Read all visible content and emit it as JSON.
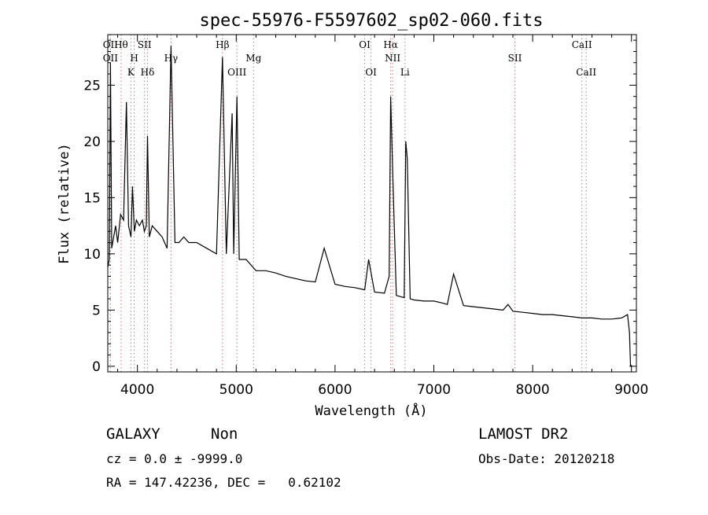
{
  "chart_data": {
    "type": "line",
    "title": "spec-55976-F5597602_sp02-060.fits",
    "xlabel": "Wavelength (Å)",
    "ylabel": "Flux (relative)",
    "xlim": [
      3700,
      9050
    ],
    "ylim": [
      -0.5,
      29.5
    ],
    "x_ticks": [
      4000,
      5000,
      6000,
      7000,
      8000,
      9000
    ],
    "y_ticks": [
      0,
      5,
      10,
      15,
      20,
      25
    ],
    "grid": false,
    "series": [
      {
        "x": [
          3700,
          3715,
          3727,
          3740,
          3760,
          3780,
          3800,
          3830,
          3860,
          3889,
          3910,
          3935,
          3950,
          3969,
          3990,
          4020,
          4050,
          4070,
          4090,
          4102,
          4120,
          4150,
          4200,
          4250,
          4300,
          4340,
          4380,
          4420,
          4470,
          4520,
          4600,
          4700,
          4800,
          4861,
          4900,
          4959,
          4975,
          5007,
          5030,
          5100,
          5200,
          5300,
          5400,
          5500,
          5600,
          5700,
          5800,
          5890,
          6000,
          6100,
          6200,
          6300,
          6340,
          6400,
          6500,
          6548,
          6563,
          6584,
          6620,
          6660,
          6700,
          6716,
          6731,
          6760,
          6800,
          6900,
          7000,
          7100,
          7136,
          7200,
          7300,
          7400,
          7500,
          7600,
          7700,
          7751,
          7800,
          7900,
          8000,
          8100,
          8200,
          8300,
          8400,
          8500,
          8600,
          8700,
          8800,
          8900,
          8960,
          8980,
          8990
        ],
        "y": [
          8.8,
          9.5,
          27.0,
          10.5,
          11.5,
          12.5,
          11.0,
          13.5,
          13.0,
          23.5,
          12.5,
          11.5,
          16.0,
          12.0,
          13.0,
          12.5,
          13.0,
          12.0,
          12.5,
          20.5,
          11.5,
          12.5,
          12.0,
          11.5,
          10.5,
          28.5,
          11.0,
          11.0,
          11.5,
          11.0,
          11.0,
          10.5,
          10.0,
          27.5,
          10.0,
          22.5,
          10.0,
          24.0,
          9.5,
          9.5,
          8.5,
          8.5,
          8.3,
          8.0,
          7.8,
          7.6,
          7.5,
          10.5,
          7.3,
          7.1,
          7.0,
          6.8,
          9.5,
          6.6,
          6.5,
          8.0,
          24.0,
          17.0,
          6.3,
          6.2,
          6.1,
          20.0,
          18.5,
          6.0,
          5.9,
          5.8,
          5.8,
          5.6,
          5.5,
          8.2,
          5.4,
          5.3,
          5.2,
          5.1,
          5.0,
          5.5,
          4.9,
          4.8,
          4.7,
          4.6,
          4.6,
          4.5,
          4.4,
          4.3,
          4.3,
          4.2,
          4.2,
          4.3,
          4.6,
          3.0,
          0.0
        ]
      }
    ],
    "line_markers": [
      {
        "wavelength": 3727,
        "label": "OII",
        "row": "top",
        "color": "#d88080"
      },
      {
        "wavelength": 3727,
        "label": "OII",
        "row": "middle",
        "color": "#9a9a9a"
      },
      {
        "wavelength": 3835,
        "label": "Hθ",
        "row": "top",
        "color": "#d88080"
      },
      {
        "wavelength": 3934,
        "label": "K",
        "row": "bottom",
        "color": "#9a9a9a"
      },
      {
        "wavelength": 3968,
        "label": "H",
        "row": "middle",
        "color": "#9a9a9a"
      },
      {
        "wavelength": 4072,
        "label": "SII",
        "row": "top",
        "color": "#9a9a9a"
      },
      {
        "wavelength": 4102,
        "label": "Hδ",
        "row": "bottom",
        "color": "#d88080"
      },
      {
        "wavelength": 4340,
        "label": "Hγ",
        "row": "middle",
        "color": "#d88080"
      },
      {
        "wavelength": 4861,
        "label": "Hβ",
        "row": "top",
        "color": "#d88080"
      },
      {
        "wavelength": 5007,
        "label": "OIII",
        "row": "bottom",
        "color": "#9a9a9a"
      },
      {
        "wavelength": 5175,
        "label": "Mg",
        "row": "middle",
        "color": "#9a9a9a"
      },
      {
        "wavelength": 6300,
        "label": "OI",
        "row": "top",
        "color": "#9a9a9a"
      },
      {
        "wavelength": 6364,
        "label": "OI",
        "row": "bottom",
        "color": "#9a9a9a"
      },
      {
        "wavelength": 6563,
        "label": "Hα",
        "row": "top",
        "color": "#d88080"
      },
      {
        "wavelength": 6583,
        "label": "NII",
        "row": "middle",
        "color": "#9a9a9a"
      },
      {
        "wavelength": 6708,
        "label": "Li",
        "row": "bottom",
        "color": "#9a9a9a"
      },
      {
        "wavelength": 7820,
        "label": "SII",
        "row": "middle",
        "color": "#d88080"
      },
      {
        "wavelength": 8498,
        "label": "CaII",
        "row": "top",
        "color": "#9a9a9a"
      },
      {
        "wavelength": 8542,
        "label": "CaII",
        "row": "bottom",
        "color": "#9a9a9a"
      }
    ]
  },
  "info": {
    "class": "GALAXY",
    "subclass": "Non",
    "survey": "LAMOST DR2",
    "cz": "cz = 0.0 ± -9999.0",
    "obs_date": "Obs-Date: 20120218",
    "coords": "RA = 147.42236, DEC =   0.62102"
  }
}
